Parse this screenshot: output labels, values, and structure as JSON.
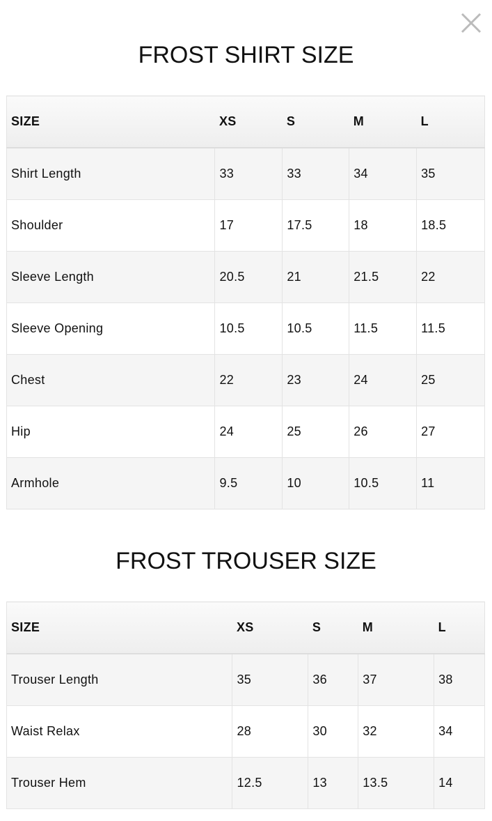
{
  "close_icon": "close-x-icon",
  "shirt": {
    "title": "FROST SHIRT SIZE",
    "headers": [
      "SIZE",
      "XS",
      "S",
      "M",
      "L"
    ],
    "rows": [
      [
        "Shirt Length",
        "33",
        "33",
        "34",
        "35"
      ],
      [
        "Shoulder",
        "17",
        "17.5",
        "18",
        "18.5"
      ],
      [
        "Sleeve Length",
        "20.5",
        "21",
        "21.5",
        "22"
      ],
      [
        "Sleeve Opening",
        "10.5",
        "10.5",
        "11.5",
        "11.5"
      ],
      [
        "Chest",
        "22",
        "23",
        "24",
        "25"
      ],
      [
        "Hip",
        "24",
        "25",
        "26",
        "27"
      ],
      [
        "Armhole",
        "9.5",
        "10",
        "10.5",
        "11"
      ]
    ]
  },
  "trouser": {
    "title": "FROST TROUSER SIZE",
    "headers": [
      "SIZE",
      "XS",
      "S",
      "M",
      "L"
    ],
    "rows": [
      [
        "Trouser Length",
        "35",
        "36",
        "37",
        "38"
      ],
      [
        "Waist Relax",
        "28",
        "30",
        "32",
        "34"
      ],
      [
        "Trouser Hem",
        "12.5",
        "13",
        "13.5",
        "14"
      ]
    ]
  }
}
